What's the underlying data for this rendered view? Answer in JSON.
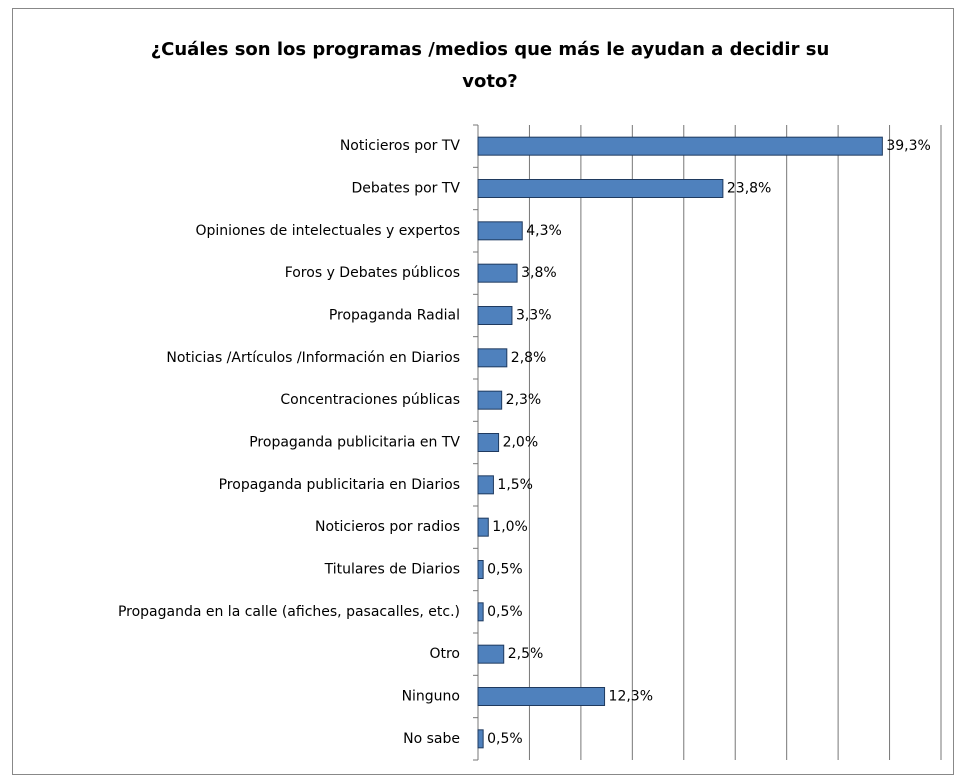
{
  "chart_data": {
    "type": "barh",
    "title": "¿Cuáles son los programas /medios que más le ayudan a decidir su voto?",
    "categories": [
      "Noticieros por TV",
      "Debates por TV",
      "Opiniones de intelectuales y expertos",
      "Foros y Debates públicos",
      "Propaganda Radial",
      "Noticias /Artículos /Información en Diarios",
      "Concentraciones públicas",
      "Propaganda publicitaria en TV",
      "Propaganda publicitaria en Diarios",
      "Noticieros por radios",
      "Titulares de Diarios",
      "Propaganda en la calle (afiches, pasacalles, etc.)",
      "Otro",
      "Ninguno",
      "No sabe"
    ],
    "values": [
      39.3,
      23.8,
      4.3,
      3.8,
      3.3,
      2.8,
      2.3,
      2.0,
      1.5,
      1.0,
      0.5,
      0.5,
      2.5,
      12.3,
      0.5
    ],
    "value_labels": [
      "39,3%",
      "23,8%",
      "4,3%",
      "3,8%",
      "3,3%",
      "2,8%",
      "2,3%",
      "2,0%",
      "1,5%",
      "1,0%",
      "0,5%",
      "0,5%",
      "2,5%",
      "12,3%",
      "0,5%"
    ],
    "color": "#4f81bd",
    "xlim": [
      0,
      45
    ],
    "xticks": [
      0,
      5,
      10,
      15,
      20,
      25,
      30,
      35,
      40,
      45
    ],
    "grid": true
  }
}
